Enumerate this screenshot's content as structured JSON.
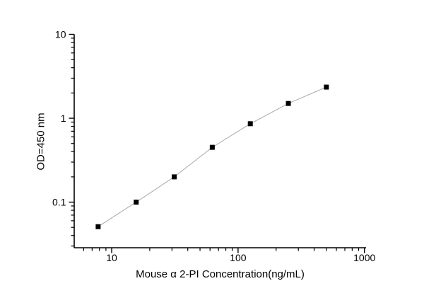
{
  "window": {
    "background_color": "#ffffff"
  },
  "chart_data": {
    "type": "line",
    "title": "",
    "xlabel": "Mouse α 2-PI Concentration(ng/mL)",
    "ylabel": "OD=450 nm",
    "x_scale": "log",
    "y_scale": "log",
    "x": [
      7.8125,
      15.625,
      31.25,
      62.5,
      125,
      250,
      500
    ],
    "y": [
      0.051,
      0.1,
      0.2,
      0.45,
      0.86,
      1.5,
      2.35
    ],
    "xlim": [
      5.05,
      1030
    ],
    "ylim": [
      0.0286,
      10
    ],
    "x_major_ticks": [
      10,
      100,
      1000
    ],
    "x_major_tick_labels": [
      "10",
      "100",
      "1000"
    ],
    "y_major_ticks": [
      0.1,
      1,
      10
    ],
    "y_major_tick_labels": [
      "0.1",
      "1",
      "10"
    ],
    "grid": false,
    "legend": null,
    "marker": {
      "shape": "square",
      "size": 7,
      "color": "#000000"
    },
    "line": {
      "color": "#a8a8a8",
      "width": 1
    },
    "axis_color": "#000000",
    "tick_direction": "out"
  }
}
